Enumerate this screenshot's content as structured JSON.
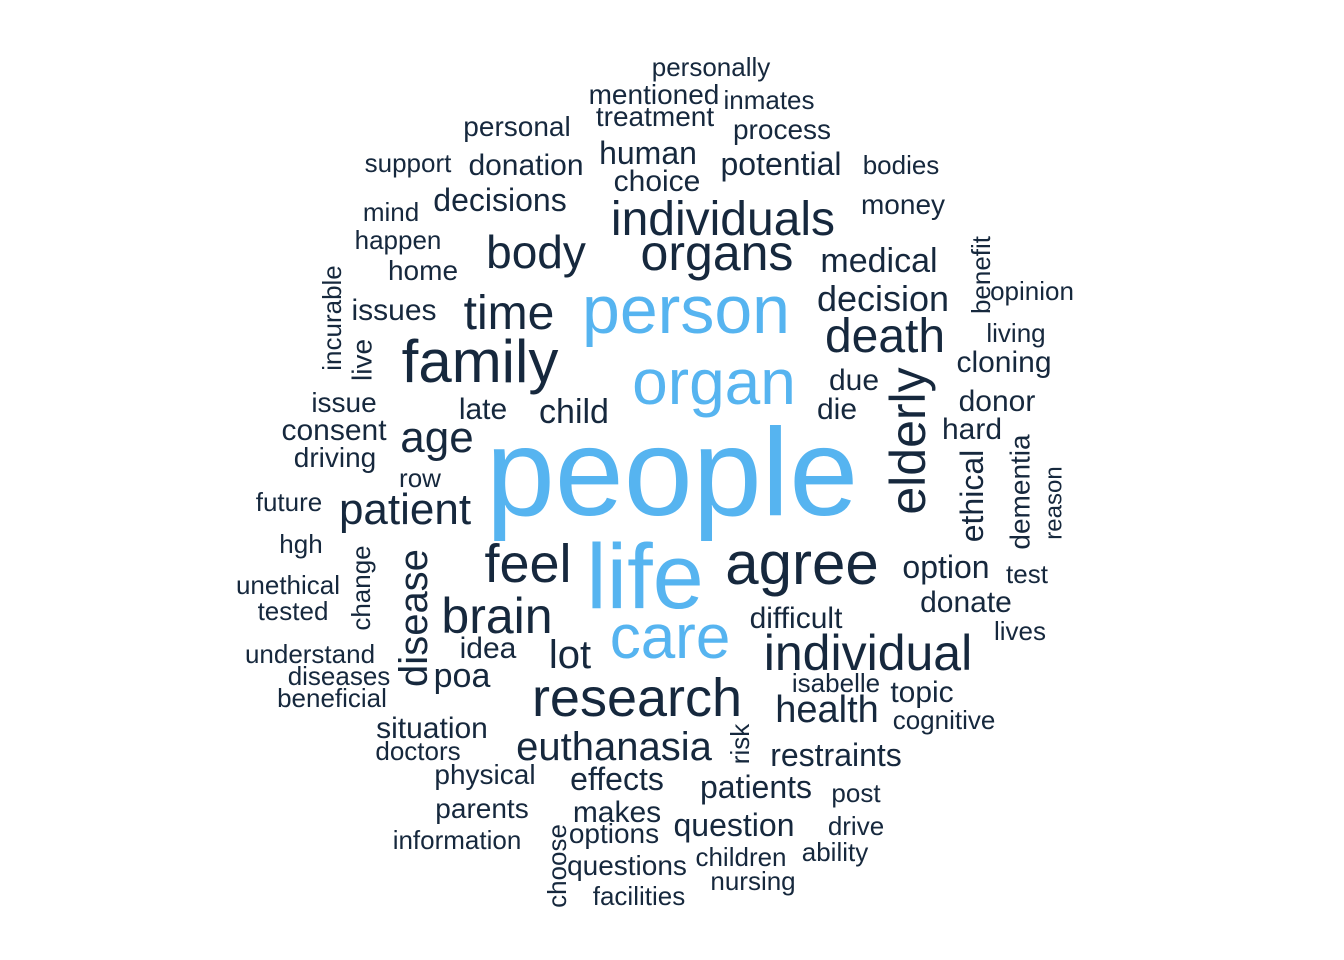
{
  "colors": {
    "highlight": "#56b4f0",
    "normal": "#16283d",
    "background": "#ffffff"
  },
  "chart_data": {
    "type": "wordcloud",
    "words": [
      {
        "text": "people",
        "freq": 100,
        "color": "highlight"
      },
      {
        "text": "life",
        "freq": 70,
        "color": "highlight"
      },
      {
        "text": "person",
        "freq": 58,
        "color": "highlight"
      },
      {
        "text": "organ",
        "freq": 55,
        "color": "highlight"
      },
      {
        "text": "care",
        "freq": 53,
        "color": "highlight"
      },
      {
        "text": "family",
        "freq": 48,
        "color": "normal"
      },
      {
        "text": "agree",
        "freq": 47,
        "color": "normal"
      },
      {
        "text": "research",
        "freq": 45,
        "color": "normal"
      },
      {
        "text": "individual",
        "freq": 42,
        "color": "normal"
      },
      {
        "text": "organs",
        "freq": 41,
        "color": "normal"
      },
      {
        "text": "individuals",
        "freq": 40,
        "color": "normal"
      },
      {
        "text": "brain",
        "freq": 40,
        "color": "normal"
      },
      {
        "text": "elderly",
        "freq": 40,
        "color": "normal"
      },
      {
        "text": "death",
        "freq": 39,
        "color": "normal"
      },
      {
        "text": "feel",
        "freq": 39,
        "color": "normal"
      },
      {
        "text": "body",
        "freq": 37,
        "color": "normal"
      },
      {
        "text": "time",
        "freq": 36,
        "color": "normal"
      },
      {
        "text": "patient",
        "freq": 36,
        "color": "normal"
      },
      {
        "text": "age",
        "freq": 35,
        "color": "normal"
      },
      {
        "text": "disease",
        "freq": 34,
        "color": "normal"
      },
      {
        "text": "euthanasia",
        "freq": 33,
        "color": "normal"
      },
      {
        "text": "lot",
        "freq": 31,
        "color": "normal"
      },
      {
        "text": "health",
        "freq": 30,
        "color": "normal"
      },
      {
        "text": "decision",
        "freq": 29,
        "color": "normal"
      },
      {
        "text": "medical",
        "freq": 28,
        "color": "normal"
      },
      {
        "text": "poa",
        "freq": 28,
        "color": "normal"
      },
      {
        "text": "child",
        "freq": 27,
        "color": "normal"
      },
      {
        "text": "restraints",
        "freq": 27,
        "color": "normal"
      },
      {
        "text": "option",
        "freq": 27,
        "color": "normal"
      },
      {
        "text": "patients",
        "freq": 27,
        "color": "normal"
      },
      {
        "text": "decisions",
        "freq": 26,
        "color": "normal"
      },
      {
        "text": "potential",
        "freq": 26,
        "color": "normal"
      },
      {
        "text": "human",
        "freq": 26,
        "color": "normal"
      },
      {
        "text": "ethical",
        "freq": 26,
        "color": "normal"
      },
      {
        "text": "effects",
        "freq": 26,
        "color": "normal"
      },
      {
        "text": "question",
        "freq": 26,
        "color": "normal"
      },
      {
        "text": "situation",
        "freq": 25,
        "color": "normal"
      },
      {
        "text": "cloning",
        "freq": 25,
        "color": "normal"
      },
      {
        "text": "donate",
        "freq": 25,
        "color": "normal"
      },
      {
        "text": "donor",
        "freq": 25,
        "color": "normal"
      },
      {
        "text": "hard",
        "freq": 25,
        "color": "normal"
      },
      {
        "text": "late",
        "freq": 25,
        "color": "normal"
      },
      {
        "text": "makes",
        "freq": 25,
        "color": "normal"
      },
      {
        "text": "issues",
        "freq": 25,
        "color": "normal"
      },
      {
        "text": "choice",
        "freq": 25,
        "color": "normal"
      },
      {
        "text": "donation",
        "freq": 24,
        "color": "normal"
      },
      {
        "text": "consent",
        "freq": 24,
        "color": "normal"
      },
      {
        "text": "difficult",
        "freq": 24,
        "color": "normal"
      },
      {
        "text": "die",
        "freq": 24,
        "color": "normal"
      },
      {
        "text": "due",
        "freq": 24,
        "color": "normal"
      },
      {
        "text": "idea",
        "freq": 24,
        "color": "normal"
      },
      {
        "text": "topic",
        "freq": 24,
        "color": "normal"
      },
      {
        "text": "dementia",
        "freq": 24,
        "color": "normal"
      },
      {
        "text": "home",
        "freq": 24,
        "color": "normal"
      },
      {
        "text": "process",
        "freq": 23,
        "color": "normal"
      },
      {
        "text": "personal",
        "freq": 23,
        "color": "normal"
      },
      {
        "text": "mentioned",
        "freq": 23,
        "color": "normal"
      },
      {
        "text": "treatment",
        "freq": 23,
        "color": "normal"
      },
      {
        "text": "money",
        "freq": 23,
        "color": "normal"
      },
      {
        "text": "live",
        "freq": 23,
        "color": "normal"
      },
      {
        "text": "issue",
        "freq": 23,
        "color": "normal"
      },
      {
        "text": "driving",
        "freq": 23,
        "color": "normal"
      },
      {
        "text": "options",
        "freq": 23,
        "color": "normal"
      },
      {
        "text": "questions",
        "freq": 23,
        "color": "normal"
      },
      {
        "text": "physical",
        "freq": 23,
        "color": "normal"
      },
      {
        "text": "parents",
        "freq": 23,
        "color": "normal"
      },
      {
        "text": "happen",
        "freq": 22,
        "color": "normal"
      },
      {
        "text": "personally",
        "freq": 22,
        "color": "normal"
      },
      {
        "text": "bodies",
        "freq": 22,
        "color": "normal"
      },
      {
        "text": "benefit",
        "freq": 22,
        "color": "normal"
      },
      {
        "text": "living",
        "freq": 22,
        "color": "normal"
      },
      {
        "text": "understand",
        "freq": 22,
        "color": "normal"
      },
      {
        "text": "post",
        "freq": 22,
        "color": "normal"
      },
      {
        "text": "change",
        "freq": 22,
        "color": "normal"
      },
      {
        "text": "test",
        "freq": 22,
        "color": "normal"
      },
      {
        "text": "cognitive",
        "freq": 22,
        "color": "normal"
      },
      {
        "text": "inmates",
        "freq": 21,
        "color": "normal"
      },
      {
        "text": "support",
        "freq": 21,
        "color": "normal"
      },
      {
        "text": "opinion",
        "freq": 21,
        "color": "normal"
      },
      {
        "text": "incurable",
        "freq": 21,
        "color": "normal"
      },
      {
        "text": "future",
        "freq": 21,
        "color": "normal"
      },
      {
        "text": "unethical",
        "freq": 21,
        "color": "normal"
      },
      {
        "text": "row",
        "freq": 21,
        "color": "normal"
      },
      {
        "text": "hgh",
        "freq": 21,
        "color": "normal"
      },
      {
        "text": "tested",
        "freq": 21,
        "color": "normal"
      },
      {
        "text": "lives",
        "freq": 21,
        "color": "normal"
      },
      {
        "text": "doctors",
        "freq": 21,
        "color": "normal"
      },
      {
        "text": "information",
        "freq": 21,
        "color": "normal"
      },
      {
        "text": "drive",
        "freq": 21,
        "color": "normal"
      },
      {
        "text": "children",
        "freq": 21,
        "color": "normal"
      },
      {
        "text": "nursing",
        "freq": 21,
        "color": "normal"
      },
      {
        "text": "facilities",
        "freq": 21,
        "color": "normal"
      },
      {
        "text": "choose",
        "freq": 21,
        "color": "normal"
      },
      {
        "text": "diseases",
        "freq": 21,
        "color": "normal"
      },
      {
        "text": "beneficial",
        "freq": 21,
        "color": "normal"
      },
      {
        "text": "isabelle",
        "freq": 21,
        "color": "normal"
      },
      {
        "text": "ability",
        "freq": 20,
        "color": "normal"
      },
      {
        "text": "mind",
        "freq": 20,
        "color": "normal"
      },
      {
        "text": "risk",
        "freq": 20,
        "color": "normal"
      },
      {
        "text": "reason",
        "freq": 20,
        "color": "normal"
      }
    ]
  }
}
